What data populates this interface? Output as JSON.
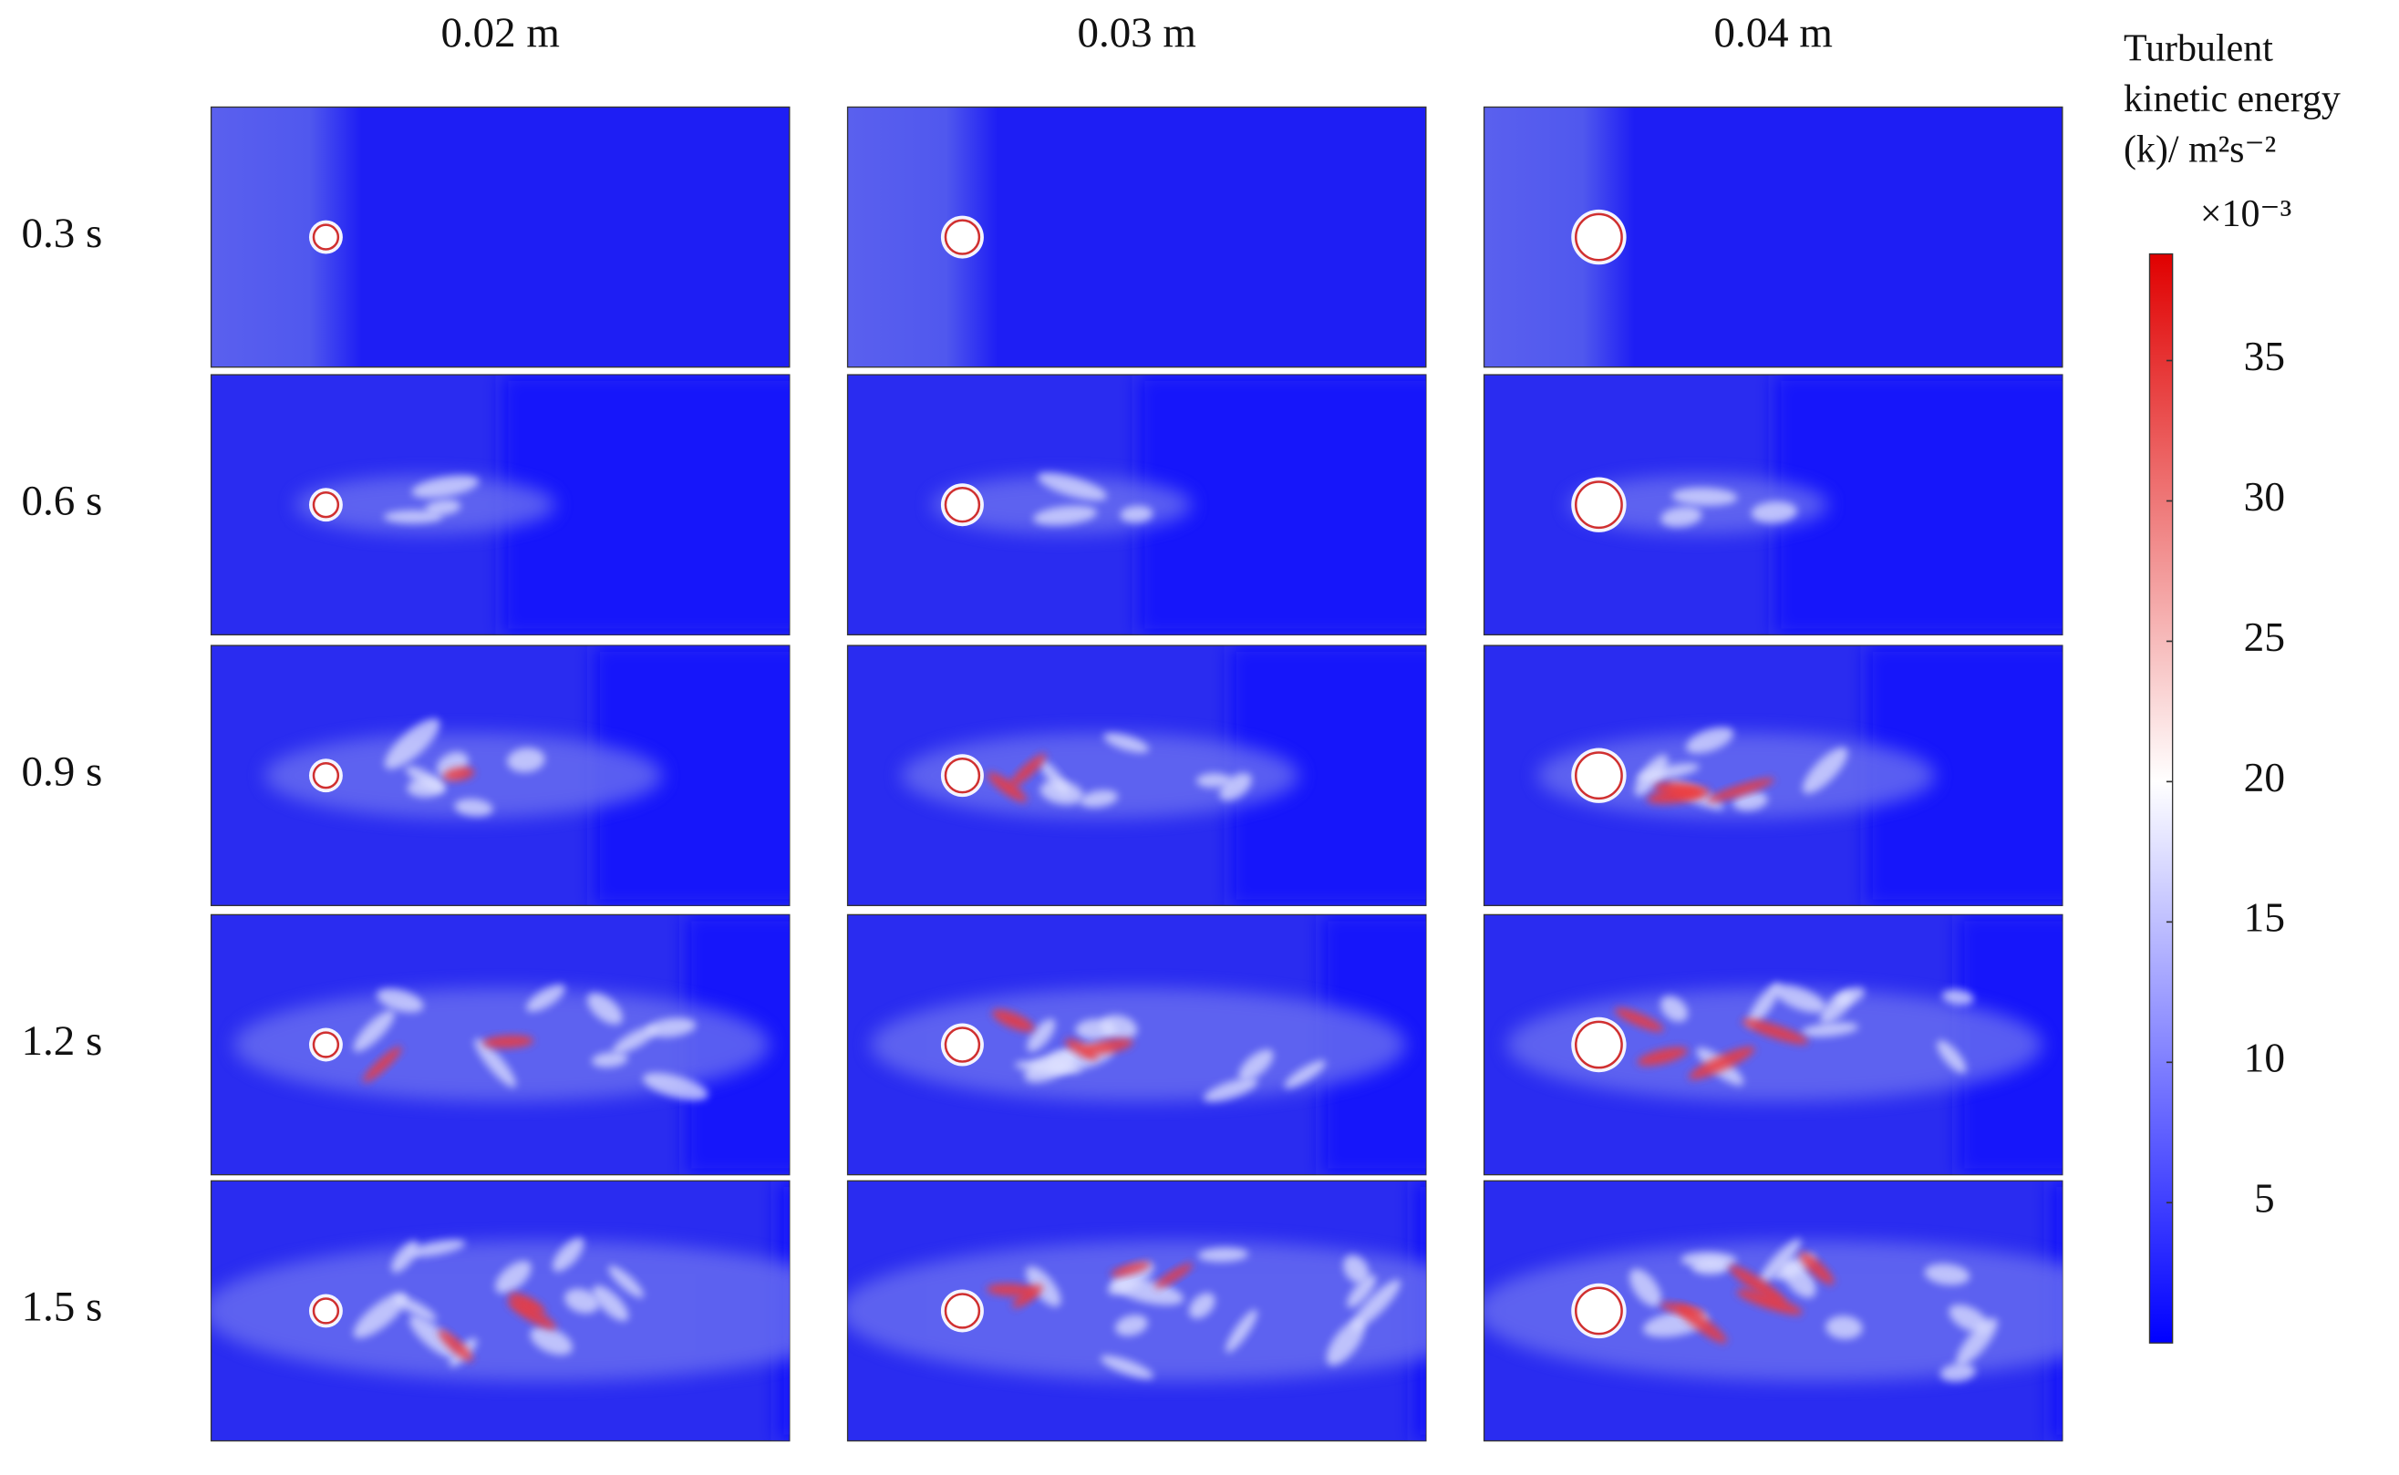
{
  "columns": [
    "0.02 m",
    "0.03 m",
    "0.04 m"
  ],
  "rows": [
    "0.3 s",
    "0.6 s",
    "0.9 s",
    "1.2 s",
    "1.5 s"
  ],
  "colorbar": {
    "title": [
      "Turbulent",
      "kinetic energy",
      "(k)/ m²s⁻²"
    ],
    "multiplier": "×10⁻³",
    "lim": [
      0,
      38.8
    ],
    "ticks": [
      5,
      10,
      15,
      20,
      25,
      30,
      35
    ]
  }
}
